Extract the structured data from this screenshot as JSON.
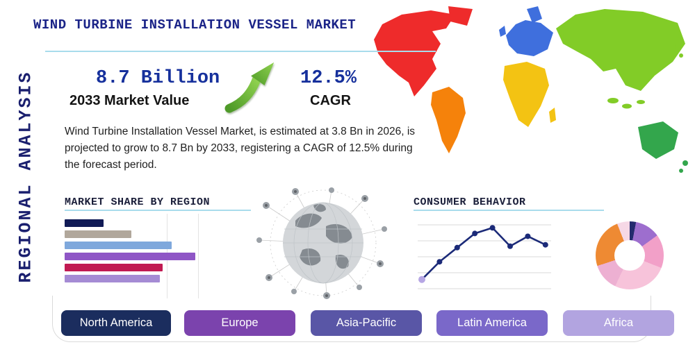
{
  "title": "WIND TURBINE INSTALLATION VESSEL MARKET",
  "side_label": "REGIONAL ANALYSIS",
  "stats": {
    "value": "8.7 Billion",
    "value_label": "2033 Market Value",
    "cagr": "12.5%",
    "cagr_label": "CAGR",
    "description": "Wind Turbine Installation Vessel Market, is estimated at 3.8 Bn in 2026, is projected to grow to 8.7 Bn by 2033, registering a CAGR of 12.5% during the forecast period."
  },
  "sections": {
    "market_share": "MARKET SHARE BY REGION",
    "consumer_behavior": "CONSUMER BEHAVIOR"
  },
  "regions": [
    {
      "label": "North America",
      "color": "#1b2d5e"
    },
    {
      "label": "Europe",
      "color": "#7b43ad"
    },
    {
      "label": "Asia-Pacific",
      "color": "#5956a6"
    },
    {
      "label": "Latin America",
      "color": "#7a68c9"
    },
    {
      "label": "Africa",
      "color": "#b2a4e0"
    }
  ],
  "chart_data": [
    {
      "type": "bar",
      "title": "MARKET SHARE BY REGION",
      "orientation": "horizontal",
      "units": "relative width, % of longest bar (no axis labels shown)",
      "values": [
        30,
        51,
        82,
        100,
        75,
        73
      ],
      "colors": [
        "#111b56",
        "#b1a79b",
        "#7fa8dc",
        "#8f56c6",
        "#c11a52",
        "#a58bd4"
      ],
      "grid": true,
      "legend": "none"
    },
    {
      "type": "line",
      "title": "CONSUMER BEHAVIOR",
      "x": [
        1,
        2,
        3,
        4,
        5,
        6,
        7,
        8
      ],
      "values": [
        1.5,
        4.0,
        6.0,
        8.0,
        8.8,
        6.2,
        7.6,
        6.4
      ],
      "ylim": [
        0,
        10
      ],
      "grid": true,
      "line_color": "#1b2a78",
      "marker_color": "#1b2a78",
      "start_marker_color": "#b6a6e4",
      "legend": "none"
    },
    {
      "type": "pie",
      "style": "donut",
      "title": "",
      "segments": [
        {
          "color": "#232a6e",
          "pct": 3
        },
        {
          "color": "#9d6ece",
          "pct": 12
        },
        {
          "color": "#f2a0c8",
          "pct": 16
        },
        {
          "color": "#f7c3da",
          "pct": 26
        },
        {
          "color": "#edb0d2",
          "pct": 13
        },
        {
          "color": "#ee8a33",
          "pct": 24
        },
        {
          "color": "#f6d8e6",
          "pct": 6
        }
      ]
    }
  ],
  "map_colors": {
    "north_america": "#ee2b2b",
    "greenland": "#ee2b2b",
    "south_america": "#f5820b",
    "europe": "#3f6fdd",
    "africa": "#f3c313",
    "asia": "#82cc27",
    "islands": "#82cc27",
    "australia": "#33a64c"
  },
  "accent": {
    "divider_blue": "#a8dcec",
    "title_blue": "#1b2488",
    "stat_blue": "#16309c",
    "arrow_green_light": "#8fd14f",
    "arrow_green_dark": "#4e9a28"
  }
}
